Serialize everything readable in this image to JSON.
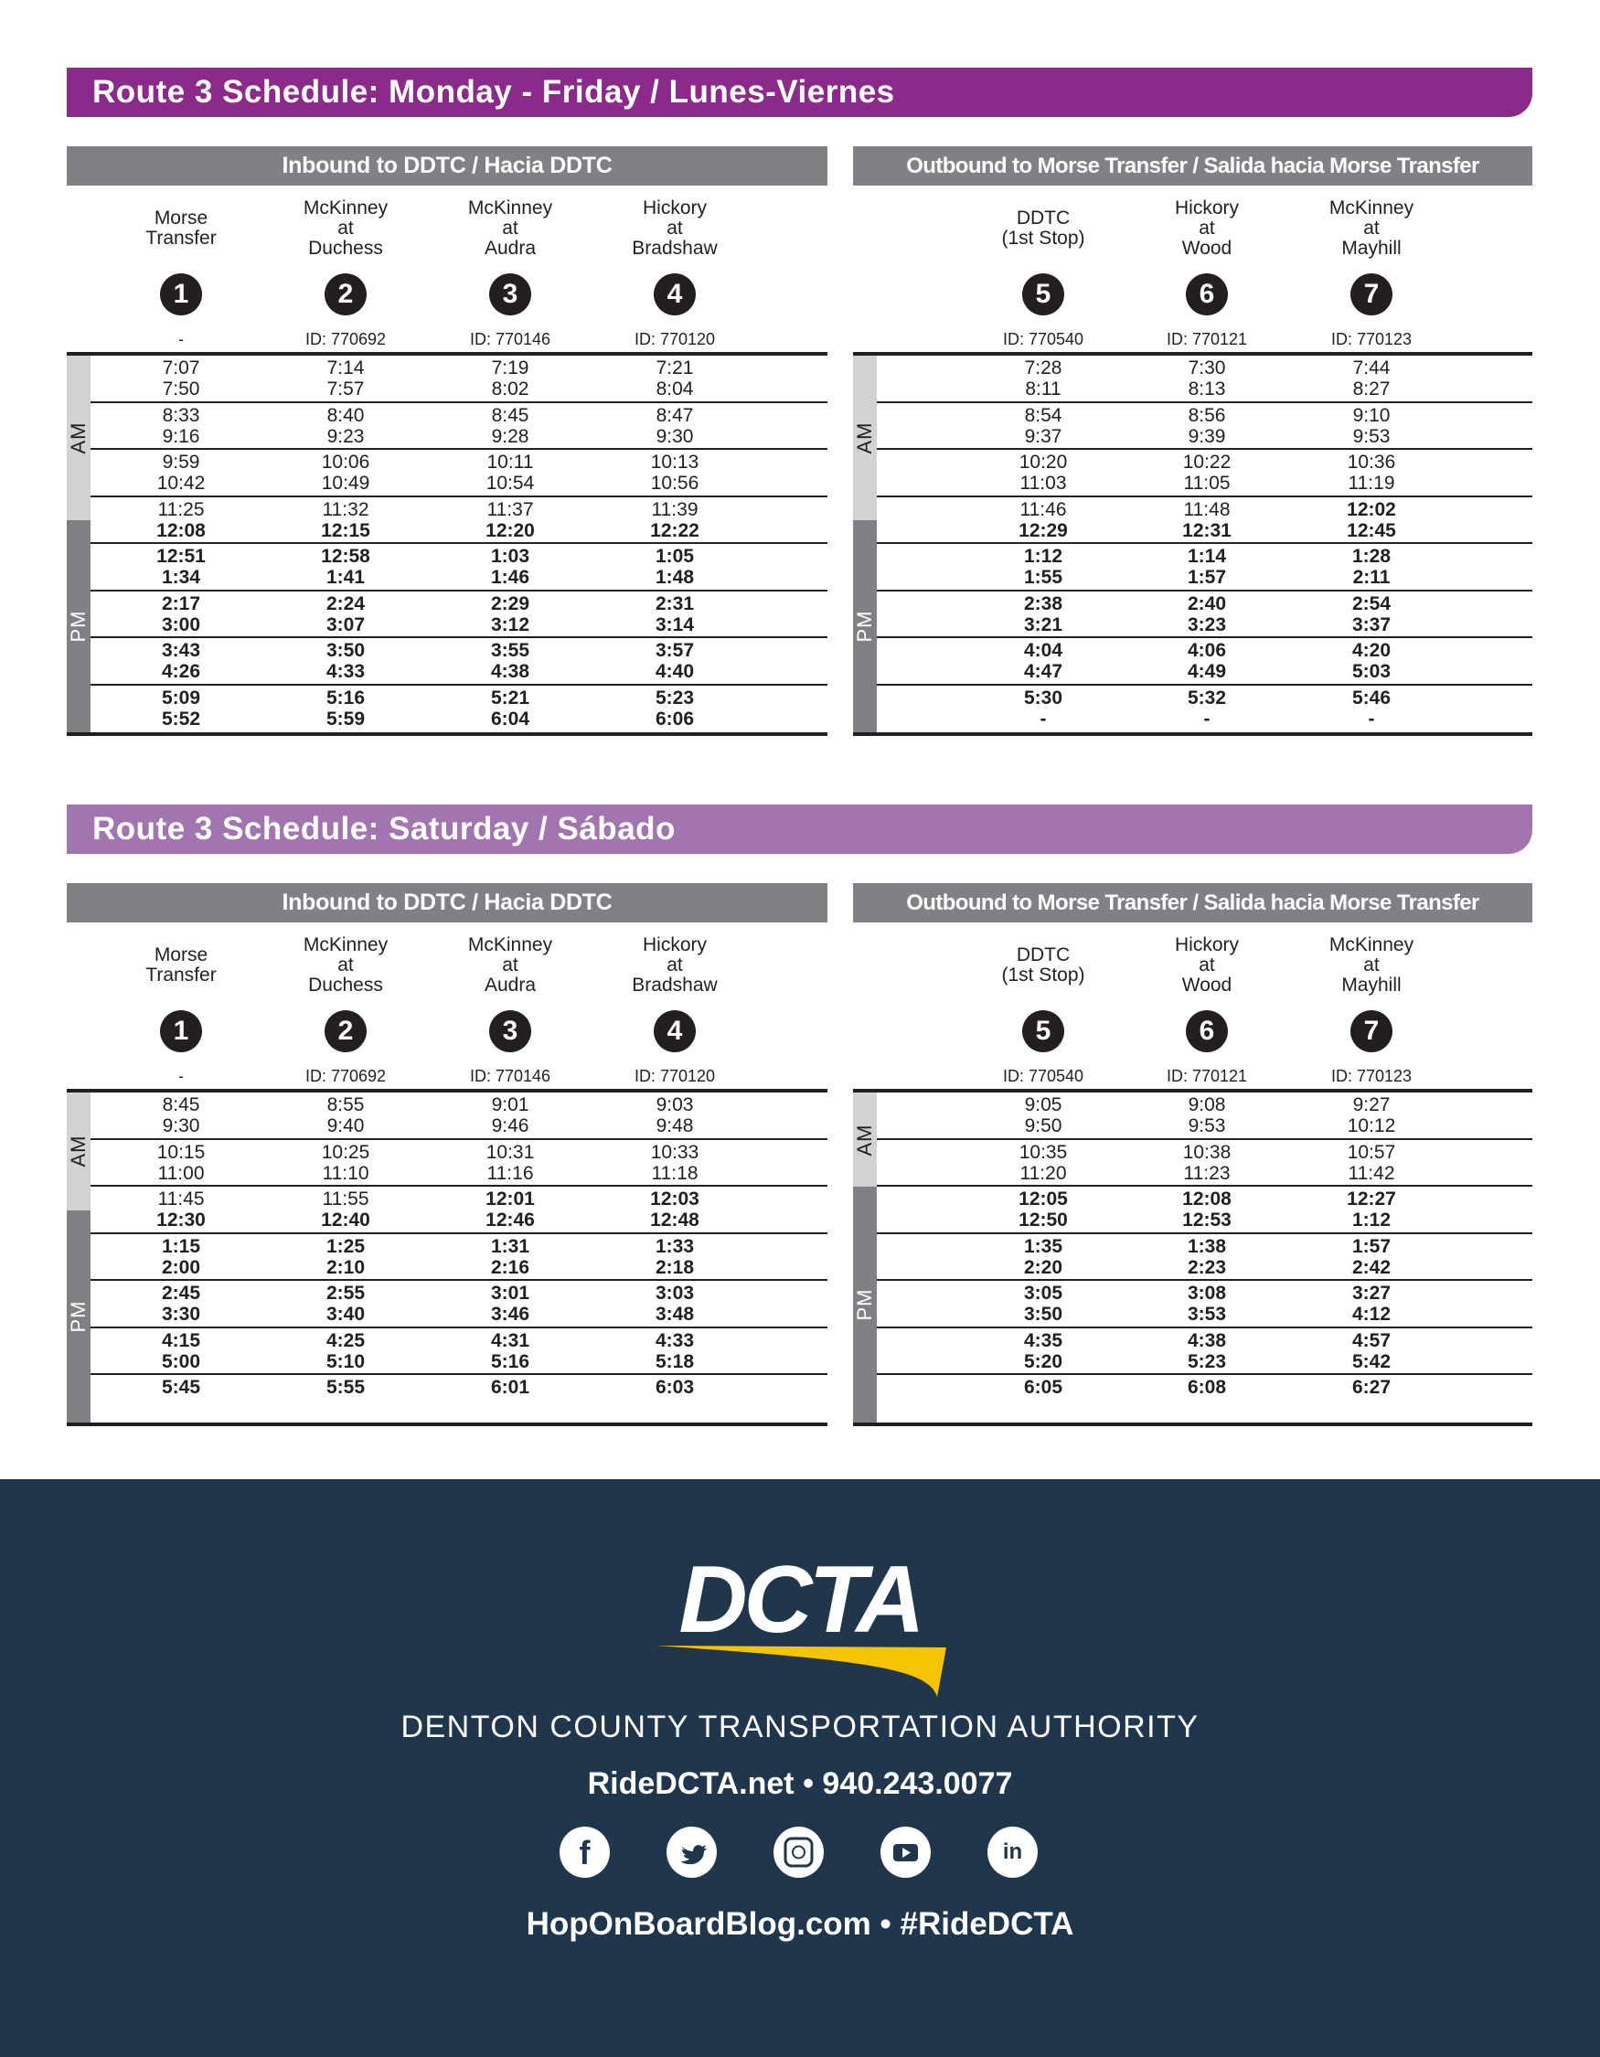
{
  "schedules": [
    {
      "title": "Route 3 Schedule: Monday - Friday / Lunes-Viernes",
      "inbound": {
        "header": "Inbound to DDTC  /  Hacia DDTC",
        "stops": [
          {
            "name": [
              "Morse",
              "Transfer"
            ],
            "num": "1",
            "id": "-"
          },
          {
            "name": [
              "McKinney",
              "at",
              "Duchess"
            ],
            "num": "2",
            "id": "ID: 770692"
          },
          {
            "name": [
              "McKinney",
              "at",
              "Audra"
            ],
            "num": "3",
            "id": "ID: 770146"
          },
          {
            "name": [
              "Hickory",
              "at",
              "Bradshaw"
            ],
            "num": "4",
            "id": "ID: 770120"
          }
        ],
        "rows": [
          [
            [
              "7:07",
              "7:50"
            ],
            [
              "7:14",
              "7:57"
            ],
            [
              "7:19",
              "8:02"
            ],
            [
              "7:21",
              "8:04"
            ]
          ],
          [
            [
              "8:33",
              "9:16"
            ],
            [
              "8:40",
              "9:23"
            ],
            [
              "8:45",
              "9:28"
            ],
            [
              "8:47",
              "9:30"
            ]
          ],
          [
            [
              "9:59",
              "10:42"
            ],
            [
              "10:06",
              "10:49"
            ],
            [
              "10:11",
              "10:54"
            ],
            [
              "10:13",
              "10:56"
            ]
          ],
          [
            [
              "11:25",
              "12:08"
            ],
            [
              "11:32",
              "12:15"
            ],
            [
              "11:37",
              "12:20"
            ],
            [
              "11:39",
              "12:22"
            ]
          ],
          [
            [
              "12:51",
              "1:34"
            ],
            [
              "12:58",
              "1:41"
            ],
            [
              "1:03",
              "1:46"
            ],
            [
              "1:05",
              "1:48"
            ]
          ],
          [
            [
              "2:17",
              "3:00"
            ],
            [
              "2:24",
              "3:07"
            ],
            [
              "2:29",
              "3:12"
            ],
            [
              "2:31",
              "3:14"
            ]
          ],
          [
            [
              "3:43",
              "4:26"
            ],
            [
              "3:50",
              "4:33"
            ],
            [
              "3:55",
              "4:38"
            ],
            [
              "3:57",
              "4:40"
            ]
          ],
          [
            [
              "5:09",
              "5:52"
            ],
            [
              "5:16",
              "5:59"
            ],
            [
              "5:21",
              "6:04"
            ],
            [
              "5:23",
              "6:06"
            ]
          ]
        ]
      },
      "outbound": {
        "header": "Outbound to Morse Transfer /  Salida hacia Morse Transfer",
        "stops": [
          {
            "name": [
              "DDTC",
              "(1st Stop)"
            ],
            "num": "5",
            "id": "ID: 770540"
          },
          {
            "name": [
              "Hickory",
              "at",
              "Wood"
            ],
            "num": "6",
            "id": "ID: 770121"
          },
          {
            "name": [
              "McKinney",
              "at",
              "Mayhill"
            ],
            "num": "7",
            "id": "ID: 770123"
          }
        ],
        "rows": [
          [
            [
              "7:28",
              "8:11"
            ],
            [
              "7:30",
              "8:13"
            ],
            [
              "7:44",
              "8:27"
            ]
          ],
          [
            [
              "8:54",
              "9:37"
            ],
            [
              "8:56",
              "9:39"
            ],
            [
              "9:10",
              "9:53"
            ]
          ],
          [
            [
              "10:20",
              "11:03"
            ],
            [
              "10:22",
              "11:05"
            ],
            [
              "10:36",
              "11:19"
            ]
          ],
          [
            [
              "11:46",
              "12:29"
            ],
            [
              "11:48",
              "12:31"
            ],
            [
              "12:02",
              "12:45"
            ]
          ],
          [
            [
              "1:12",
              "1:55"
            ],
            [
              "1:14",
              "1:57"
            ],
            [
              "1:28",
              "2:11"
            ]
          ],
          [
            [
              "2:38",
              "3:21"
            ],
            [
              "2:40",
              "3:23"
            ],
            [
              "2:54",
              "3:37"
            ]
          ],
          [
            [
              "4:04",
              "4:47"
            ],
            [
              "4:06",
              "4:49"
            ],
            [
              "4:20",
              "5:03"
            ]
          ],
          [
            [
              "5:30",
              "-"
            ],
            [
              "5:32",
              "-"
            ],
            [
              "5:46",
              "-"
            ]
          ]
        ]
      },
      "period_labels": {
        "am": "AM",
        "pm": "PM"
      }
    },
    {
      "title": "Route 3 Schedule: Saturday / Sábado",
      "inbound": {
        "header": "Inbound to DDTC  /  Hacia DDTC",
        "stops": [
          {
            "name": [
              "Morse",
              "Transfer"
            ],
            "num": "1",
            "id": "-"
          },
          {
            "name": [
              "McKinney",
              "at",
              "Duchess"
            ],
            "num": "2",
            "id": "ID: 770692"
          },
          {
            "name": [
              "McKinney",
              "at",
              "Audra"
            ],
            "num": "3",
            "id": "ID: 770146"
          },
          {
            "name": [
              "Hickory",
              "at",
              "Bradshaw"
            ],
            "num": "4",
            "id": "ID: 770120"
          }
        ],
        "rows": [
          [
            [
              "8:45",
              "9:30"
            ],
            [
              "8:55",
              "9:40"
            ],
            [
              "9:01",
              "9:46"
            ],
            [
              "9:03",
              "9:48"
            ]
          ],
          [
            [
              "10:15",
              "11:00"
            ],
            [
              "10:25",
              "11:10"
            ],
            [
              "10:31",
              "11:16"
            ],
            [
              "10:33",
              "11:18"
            ]
          ],
          [
            [
              "11:45",
              "12:30"
            ],
            [
              "11:55",
              "12:40"
            ],
            [
              "12:01",
              "12:46"
            ],
            [
              "12:03",
              "12:48"
            ]
          ],
          [
            [
              "1:15",
              "2:00"
            ],
            [
              "1:25",
              "2:10"
            ],
            [
              "1:31",
              "2:16"
            ],
            [
              "1:33",
              "2:18"
            ]
          ],
          [
            [
              "2:45",
              "3:30"
            ],
            [
              "2:55",
              "3:40"
            ],
            [
              "3:01",
              "3:46"
            ],
            [
              "3:03",
              "3:48"
            ]
          ],
          [
            [
              "4:15",
              "5:00"
            ],
            [
              "4:25",
              "5:10"
            ],
            [
              "4:31",
              "5:16"
            ],
            [
              "4:33",
              "5:18"
            ]
          ],
          [
            [
              "5:45"
            ],
            [
              "5:55"
            ],
            [
              "6:01"
            ],
            [
              "6:03"
            ]
          ]
        ]
      },
      "outbound": {
        "header": "Outbound to Morse Transfer /  Salida hacia Morse Transfer",
        "stops": [
          {
            "name": [
              "DDTC",
              "(1st Stop)"
            ],
            "num": "5",
            "id": "ID: 770540"
          },
          {
            "name": [
              "Hickory",
              "at",
              "Wood"
            ],
            "num": "6",
            "id": "ID: 770121"
          },
          {
            "name": [
              "McKinney",
              "at",
              "Mayhill"
            ],
            "num": "7",
            "id": "ID: 770123"
          }
        ],
        "rows": [
          [
            [
              "9:05",
              "9:50"
            ],
            [
              "9:08",
              "9:53"
            ],
            [
              "9:27",
              "10:12"
            ]
          ],
          [
            [
              "10:35",
              "11:20"
            ],
            [
              "10:38",
              "11:23"
            ],
            [
              "10:57",
              "11:42"
            ]
          ],
          [
            [
              "12:05",
              "12:50"
            ],
            [
              "12:08",
              "12:53"
            ],
            [
              "12:27",
              "1:12"
            ]
          ],
          [
            [
              "1:35",
              "2:20"
            ],
            [
              "1:38",
              "2:23"
            ],
            [
              "1:57",
              "2:42"
            ]
          ],
          [
            [
              "3:05",
              "3:50"
            ],
            [
              "3:08",
              "3:53"
            ],
            [
              "3:27",
              "4:12"
            ]
          ],
          [
            [
              "4:35",
              "5:20"
            ],
            [
              "4:38",
              "5:23"
            ],
            [
              "4:57",
              "5:42"
            ]
          ],
          [
            [
              "6:05"
            ],
            [
              "6:08"
            ],
            [
              "6:27"
            ]
          ]
        ]
      },
      "period_labels": {
        "am": "AM",
        "pm": "PM"
      }
    }
  ],
  "footer": {
    "logo_text": "DCTA",
    "org_name": "DENTON COUNTY TRANSPORTATION AUTHORITY",
    "contact": "RideDCTA.net • 940.243.0077",
    "social_icons": [
      "facebook-icon",
      "twitter-icon",
      "instagram-icon",
      "youtube-icon",
      "linkedin-icon"
    ],
    "blog": "HopOnBoardBlog.com • #RideDCTA"
  },
  "colors": {
    "weekday_banner": "#8b2a8b",
    "saturday_banner": "#a274b0",
    "panel_header": "#808184",
    "am_band": "#d1d2d4",
    "pm_band": "#808184",
    "footer_bg": "#1f364d",
    "logo_swoosh": "#f5c400"
  }
}
